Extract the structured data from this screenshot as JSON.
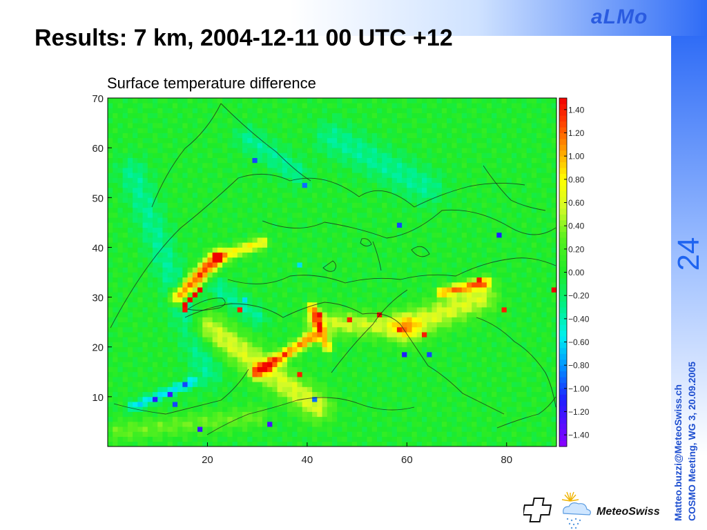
{
  "slide": {
    "title": "Results: 7 km,  2004-12-11 00 UTC +12",
    "brand": "aLMo",
    "page_number": "24",
    "side_text": [
      "Matteo.buzzi@MeteoSwiss.ch",
      "COSMO Meeting, WG 3, 20.09.2005"
    ],
    "logo_name": "MeteoSwiss",
    "colors": {
      "accent": "#2f6cf6",
      "brand_text": "#2a5be0",
      "side_text": "#1e4fd0"
    }
  },
  "chart_data": {
    "type": "heatmap",
    "title": "Surface temperature difference",
    "xlabel": "",
    "ylabel": "",
    "xlim": [
      0,
      90
    ],
    "ylim": [
      0,
      70
    ],
    "xticks": [
      20,
      40,
      60,
      80
    ],
    "yticks": [
      10,
      20,
      30,
      40,
      50,
      60,
      70
    ],
    "colorbar": {
      "range": [
        -1.5,
        1.5
      ],
      "ticks": [
        1.4,
        1.2,
        1.0,
        0.8,
        0.6,
        0.4,
        0.2,
        0.0,
        -0.2,
        -0.4,
        -0.6,
        -0.8,
        -1.0,
        -1.2,
        -1.4
      ],
      "tick_labels": [
        "1.40",
        "1.20",
        "1.00",
        "0.80",
        "0.60",
        "0.40",
        "0.20",
        "0.00",
        "−0.20",
        "−0.40",
        "−0.60",
        "−0.80",
        "−1.00",
        "−1.20",
        "−1.40"
      ]
    },
    "background_value": 0.0,
    "features": [
      {
        "type": "ridge",
        "from": [
          14,
          30
        ],
        "to": [
          22,
          38
        ],
        "width": 1.5,
        "value": 1.3
      },
      {
        "type": "ridge",
        "from": [
          22,
          38
        ],
        "to": [
          31,
          41
        ],
        "width": 1.2,
        "value": 0.8
      },
      {
        "type": "ridge",
        "from": [
          20,
          24
        ],
        "to": [
          42,
          8
        ],
        "width": 3.0,
        "value": 0.6
      },
      {
        "type": "ridge",
        "from": [
          30,
          15
        ],
        "to": [
          41,
          22
        ],
        "width": 1.2,
        "value": 1.1
      },
      {
        "type": "ridge",
        "from": [
          42,
          25
        ],
        "to": [
          60,
          24
        ],
        "width": 2.5,
        "value": 0.55
      },
      {
        "type": "ridge",
        "from": [
          60,
          24
        ],
        "to": [
          75,
          30
        ],
        "width": 3.0,
        "value": 0.6
      },
      {
        "type": "ridge",
        "from": [
          41,
          28
        ],
        "to": [
          44,
          20
        ],
        "width": 1.0,
        "value": 1.0
      },
      {
        "type": "ridge",
        "from": [
          67,
          31
        ],
        "to": [
          76,
          33
        ],
        "width": 1.0,
        "value": 1.0
      },
      {
        "type": "ridge",
        "from": [
          28,
          62
        ],
        "to": [
          38,
          55
        ],
        "width": 2.5,
        "value": -0.3
      },
      {
        "type": "ridge",
        "from": [
          45,
          62
        ],
        "to": [
          64,
          52
        ],
        "width": 3.5,
        "value": -0.3
      },
      {
        "type": "ridge",
        "from": [
          5,
          55
        ],
        "to": [
          20,
          15
        ],
        "width": 3.0,
        "value": -0.3
      },
      {
        "type": "ridge",
        "from": [
          22,
          32
        ],
        "to": [
          30,
          26
        ],
        "width": 2.0,
        "value": -0.3
      },
      {
        "type": "ridge",
        "from": [
          2,
          3
        ],
        "to": [
          30,
          6
        ],
        "width": 2.0,
        "value": 0.3
      },
      {
        "type": "ridge",
        "from": [
          5,
          8
        ],
        "to": [
          17,
          13
        ],
        "width": 1.0,
        "value": -0.6
      }
    ],
    "extreme_cells": [
      {
        "x": 15,
        "y": 28,
        "value": 1.5
      },
      {
        "x": 16,
        "y": 29,
        "value": 1.5
      },
      {
        "x": 17,
        "y": 30,
        "value": 1.5
      },
      {
        "x": 18,
        "y": 31,
        "value": 1.5
      },
      {
        "x": 15,
        "y": 27,
        "value": 1.45
      },
      {
        "x": 26,
        "y": 27,
        "value": 1.4
      },
      {
        "x": 42,
        "y": 26,
        "value": 1.5
      },
      {
        "x": 48,
        "y": 25,
        "value": 1.4
      },
      {
        "x": 54,
        "y": 26,
        "value": 1.45
      },
      {
        "x": 58,
        "y": 23,
        "value": 1.4
      },
      {
        "x": 63,
        "y": 22,
        "value": 1.4
      },
      {
        "x": 74,
        "y": 33,
        "value": 1.45
      },
      {
        "x": 79,
        "y": 27,
        "value": 1.4
      },
      {
        "x": 89,
        "y": 31,
        "value": 1.5
      },
      {
        "x": 35,
        "y": 18,
        "value": 1.4
      },
      {
        "x": 38,
        "y": 14,
        "value": 1.4
      },
      {
        "x": 29,
        "y": 57,
        "value": -1.0
      },
      {
        "x": 39,
        "y": 52,
        "value": -0.9
      },
      {
        "x": 58,
        "y": 44,
        "value": -1.0
      },
      {
        "x": 78,
        "y": 42,
        "value": -1.1
      },
      {
        "x": 12,
        "y": 10,
        "value": -1.2
      },
      {
        "x": 9,
        "y": 9,
        "value": -1.15
      },
      {
        "x": 13,
        "y": 8,
        "value": -1.0
      },
      {
        "x": 15,
        "y": 12,
        "value": -1.0
      },
      {
        "x": 18,
        "y": 3,
        "value": -1.2
      },
      {
        "x": 32,
        "y": 4,
        "value": -1.25
      },
      {
        "x": 41,
        "y": 9,
        "value": -0.9
      },
      {
        "x": 59,
        "y": 18,
        "value": -1.1
      },
      {
        "x": 64,
        "y": 18,
        "value": -1.0
      },
      {
        "x": 38,
        "y": 36,
        "value": -0.6
      },
      {
        "x": 27,
        "y": 29,
        "value": -0.6
      }
    ]
  }
}
